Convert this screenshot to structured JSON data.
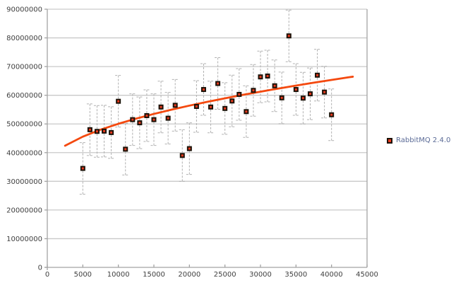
{
  "chart_data": {
    "type": "scatter",
    "title": "",
    "xlabel": "",
    "ylabel": "",
    "xlim": [
      0,
      45000
    ],
    "ylim": [
      0,
      90000000
    ],
    "x_ticks": [
      0,
      5000,
      10000,
      15000,
      20000,
      25000,
      30000,
      35000,
      40000,
      45000
    ],
    "y_ticks": [
      0,
      10000000,
      20000000,
      30000000,
      40000000,
      50000000,
      60000000,
      70000000,
      80000000,
      90000000
    ],
    "grid": true,
    "legend_position": "right",
    "series": [
      {
        "name": "RabbitMQ 2.4.0",
        "marker": "square",
        "marker_border_color": "#1c1208",
        "marker_fill_color": "#e8391d",
        "yerr": 9000000,
        "points": [
          {
            "x": 5000,
            "y": 34500000
          },
          {
            "x": 6000,
            "y": 48000000
          },
          {
            "x": 7000,
            "y": 47400000
          },
          {
            "x": 8000,
            "y": 47500000
          },
          {
            "x": 9000,
            "y": 47000000
          },
          {
            "x": 10000,
            "y": 57900000
          },
          {
            "x": 11000,
            "y": 41200000
          },
          {
            "x": 12000,
            "y": 51500000
          },
          {
            "x": 13000,
            "y": 50400000
          },
          {
            "x": 14000,
            "y": 52900000
          },
          {
            "x": 15000,
            "y": 51500000
          },
          {
            "x": 16000,
            "y": 55900000
          },
          {
            "x": 17000,
            "y": 52000000
          },
          {
            "x": 18000,
            "y": 56500000
          },
          {
            "x": 19000,
            "y": 39000000
          },
          {
            "x": 20000,
            "y": 41400000
          },
          {
            "x": 21000,
            "y": 56100000
          },
          {
            "x": 22000,
            "y": 62000000
          },
          {
            "x": 23000,
            "y": 55900000
          },
          {
            "x": 24000,
            "y": 64100000
          },
          {
            "x": 25000,
            "y": 55400000
          },
          {
            "x": 26000,
            "y": 58000000
          },
          {
            "x": 27000,
            "y": 60300000
          },
          {
            "x": 28000,
            "y": 54300000
          },
          {
            "x": 29000,
            "y": 61700000
          },
          {
            "x": 30000,
            "y": 66400000
          },
          {
            "x": 31000,
            "y": 66700000
          },
          {
            "x": 32000,
            "y": 63300000
          },
          {
            "x": 33000,
            "y": 59100000
          },
          {
            "x": 34000,
            "y": 80700000
          },
          {
            "x": 35000,
            "y": 62000000
          },
          {
            "x": 36000,
            "y": 59000000
          },
          {
            "x": 37000,
            "y": 60500000
          },
          {
            "x": 38000,
            "y": 67000000
          },
          {
            "x": 39000,
            "y": 61100000
          },
          {
            "x": 40000,
            "y": 53200000
          }
        ]
      }
    ],
    "trendline": {
      "color": "#f4490f",
      "points": [
        [
          2500,
          42400000
        ],
        [
          5000,
          45570000
        ],
        [
          7500,
          48000000
        ],
        [
          10000,
          50050000
        ],
        [
          12500,
          51860000
        ],
        [
          15000,
          53490000
        ],
        [
          17500,
          54990000
        ],
        [
          20000,
          56390000
        ],
        [
          22500,
          57700000
        ],
        [
          25000,
          58940000
        ],
        [
          27500,
          60120000
        ],
        [
          30000,
          61250000
        ],
        [
          32500,
          62330000
        ],
        [
          35000,
          63370000
        ],
        [
          37500,
          64380000
        ],
        [
          40000,
          65350000
        ],
        [
          42500,
          66290000
        ],
        [
          43000,
          66470000
        ]
      ]
    },
    "colors": {
      "background": "#ffffff",
      "gridline": "#c9c9c9",
      "axis": "#a3a3a3",
      "error_bar": "#b0b0b0",
      "tick_label": "#3f3f3f",
      "legend_text": "#5a6a96"
    }
  }
}
